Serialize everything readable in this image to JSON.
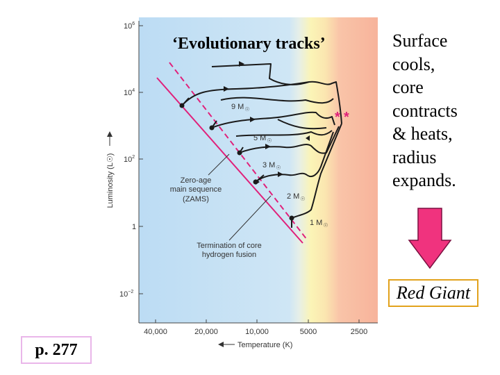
{
  "slide": {
    "title": "‘Evolutionary tracks’",
    "side_lines": [
      "Surface",
      "cools,",
      "core",
      "contracts",
      "& heats,",
      "radius",
      "expands."
    ],
    "red_giant_label": "Red Giant",
    "page_ref": "p. 277",
    "arrow_color": "#f0337e"
  },
  "diagram": {
    "y_axis_label": "Luminosity (L☉)",
    "x_axis_label": "Temperature (K)",
    "y_ticks": [
      {
        "base": "10",
        "exp": "6"
      },
      {
        "base": "10",
        "exp": "4"
      },
      {
        "base": "10",
        "exp": "2"
      },
      {
        "base": "1",
        "exp": ""
      },
      {
        "base": "10",
        "exp": "−2"
      }
    ],
    "x_ticks": [
      "40,000",
      "20,000",
      "10,000",
      "5000",
      "2500"
    ],
    "mass_labels": [
      "9 M",
      "5 M",
      "3 M",
      "2 M",
      "1 M"
    ],
    "zams_label": [
      "Zero-age",
      "main sequence",
      "(ZAMS)"
    ],
    "termination_label": [
      "Termination of core",
      "hydrogen fusion"
    ],
    "colors": {
      "hot": "#b9dcf4",
      "warm": "#fbf3b4",
      "cool": "#f8b499",
      "track": "#1a1a1a",
      "zams": "#e0207a"
    }
  }
}
